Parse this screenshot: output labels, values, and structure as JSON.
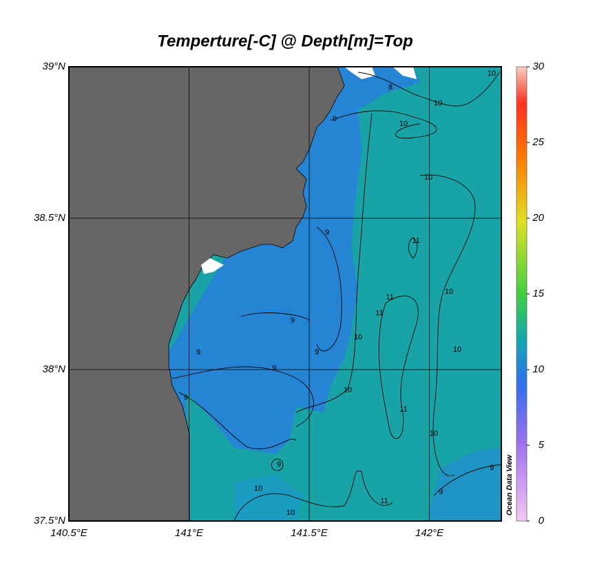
{
  "title": "Temperture[-C] @ Depth[m]=Top",
  "map": {
    "xlim": [
      140.5,
      142.3
    ],
    "ylim": [
      37.5,
      39
    ],
    "xticks": [
      {
        "value": 140.5,
        "label": "140.5°E"
      },
      {
        "value": 141,
        "label": "141°E"
      },
      {
        "value": 141.5,
        "label": "141.5°E"
      },
      {
        "value": 142,
        "label": "142°E"
      }
    ],
    "yticks": [
      {
        "value": 37.5,
        "label": "37.5°N"
      },
      {
        "value": 38,
        "label": "38°N"
      },
      {
        "value": 38.5,
        "label": "38.5°N"
      },
      {
        "value": 39,
        "label": "39°N"
      }
    ],
    "grid": true,
    "contour_labels": [
      8,
      10,
      10,
      9,
      10,
      10,
      9,
      11,
      10,
      11,
      11,
      9,
      10,
      9,
      10,
      9,
      9,
      10,
      9,
      11,
      10,
      9,
      9,
      9,
      10,
      11,
      10
    ]
  },
  "colorbar": {
    "lim": [
      0,
      30
    ],
    "ticks": [
      0,
      5,
      10,
      15,
      20,
      25,
      30
    ]
  },
  "watermark": "Ocean Data View"
}
